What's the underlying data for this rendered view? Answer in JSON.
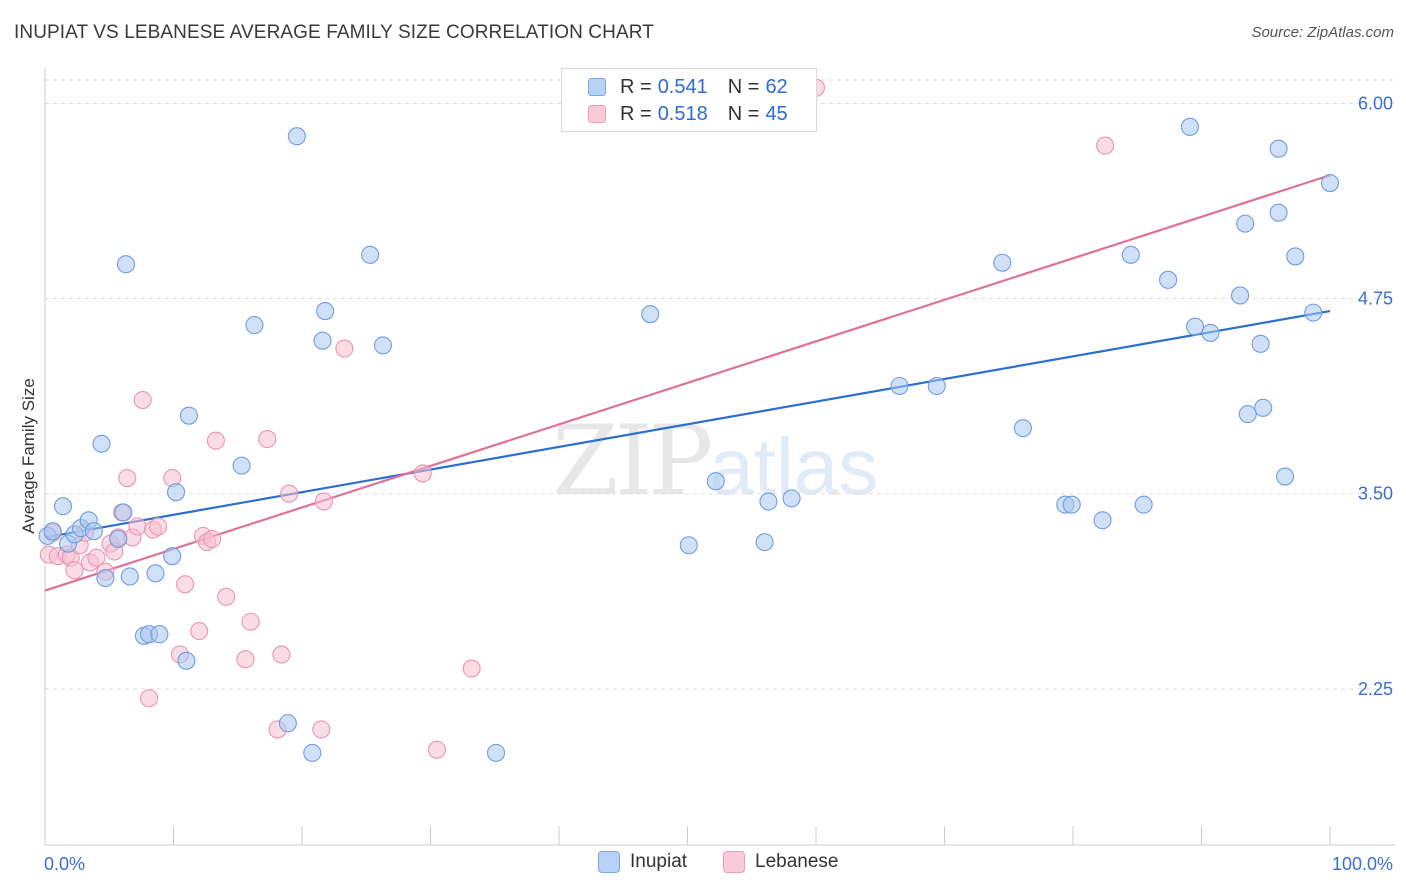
{
  "title": "INUPIAT VS LEBANESE AVERAGE FAMILY SIZE CORRELATION CHART",
  "source": "Source: ZipAtlas.com",
  "watermark": {
    "zip": "ZIP",
    "atlas": "atlas"
  },
  "legend": {
    "rows": [
      {
        "r_label": "R =",
        "r_value": "0.541",
        "n_label": "N =",
        "n_value": "62"
      },
      {
        "r_label": "R =",
        "r_value": "0.518",
        "n_label": "N =",
        "n_value": "45"
      }
    ]
  },
  "bottom_legend": {
    "inupiat": "Inupiat",
    "lebanese": "Lebanese"
  },
  "colors": {
    "inupiat_fill": "#a9c8f0",
    "inupiat_stroke": "#6f9ee0",
    "inupiat_line": "#2b6fd0",
    "lebanese_fill": "#f6bfd0",
    "lebanese_stroke": "#ec94b2",
    "lebanese_line": "#e0709a",
    "tick_text": "#3a6fd0",
    "grid": "#dddddd"
  },
  "chart_data": {
    "type": "scatter",
    "title": "INUPIAT VS LEBANESE AVERAGE FAMILY SIZE CORRELATION CHART",
    "xlabel": "",
    "ylabel": "Average Family Size",
    "xlim": [
      0,
      100
    ],
    "ylim": [
      1.25,
      6.15
    ],
    "x_tick_labels": [
      {
        "value": 0,
        "label": "0.0%"
      },
      {
        "value": 100,
        "label": "100.0%"
      }
    ],
    "x_minor_ticks": [
      10,
      20,
      30,
      40,
      50,
      60,
      70,
      80,
      90,
      100
    ],
    "y_ticks": [
      {
        "value": 2.25,
        "label": "2.25"
      },
      {
        "value": 3.5,
        "label": "3.50"
      },
      {
        "value": 4.75,
        "label": "4.75"
      },
      {
        "value": 6.0,
        "label": "6.00"
      }
    ],
    "grid": true,
    "series": [
      {
        "name": "Inupiat",
        "r": 0.541,
        "n": 62,
        "trend": [
          [
            0,
            3.22
          ],
          [
            100,
            4.67
          ]
        ],
        "points": [
          [
            0.2,
            3.23
          ],
          [
            0.6,
            3.26
          ],
          [
            1.4,
            3.42
          ],
          [
            1.8,
            3.18
          ],
          [
            2.3,
            3.24
          ],
          [
            2.8,
            3.28
          ],
          [
            3.4,
            3.33
          ],
          [
            3.8,
            3.26
          ],
          [
            4.4,
            3.82
          ],
          [
            4.7,
            2.96
          ],
          [
            5.7,
            3.21
          ],
          [
            6.1,
            3.38
          ],
          [
            6.3,
            4.97
          ],
          [
            6.6,
            2.97
          ],
          [
            7.7,
            2.59
          ],
          [
            8.1,
            2.6
          ],
          [
            8.6,
            2.99
          ],
          [
            8.9,
            2.6
          ],
          [
            9.9,
            3.1
          ],
          [
            10.2,
            3.51
          ],
          [
            11.0,
            2.43
          ],
          [
            11.2,
            4.0
          ],
          [
            15.3,
            3.68
          ],
          [
            16.3,
            4.58
          ],
          [
            18.9,
            2.03
          ],
          [
            19.6,
            5.79
          ],
          [
            20.8,
            1.84
          ],
          [
            21.6,
            4.48
          ],
          [
            21.8,
            4.67
          ],
          [
            25.3,
            5.03
          ],
          [
            26.3,
            4.45
          ],
          [
            35.1,
            1.84
          ],
          [
            47.1,
            4.65
          ],
          [
            50.1,
            3.17
          ],
          [
            52.2,
            3.58
          ],
          [
            56.0,
            3.19
          ],
          [
            56.3,
            3.45
          ],
          [
            58.1,
            3.47
          ],
          [
            66.5,
            4.19
          ],
          [
            69.4,
            4.19
          ],
          [
            74.5,
            4.98
          ],
          [
            76.1,
            3.92
          ],
          [
            79.4,
            3.43
          ],
          [
            79.9,
            3.43
          ],
          [
            82.3,
            3.33
          ],
          [
            84.5,
            5.03
          ],
          [
            85.5,
            3.43
          ],
          [
            87.4,
            4.87
          ],
          [
            89.1,
            5.85
          ],
          [
            89.5,
            4.57
          ],
          [
            90.7,
            4.53
          ],
          [
            93.0,
            4.77
          ],
          [
            93.4,
            5.23
          ],
          [
            93.6,
            4.01
          ],
          [
            94.6,
            4.46
          ],
          [
            94.8,
            4.05
          ],
          [
            96.0,
            5.71
          ],
          [
            96.0,
            5.3
          ],
          [
            96.5,
            3.61
          ],
          [
            97.3,
            5.02
          ],
          [
            98.7,
            4.66
          ],
          [
            100.0,
            5.49
          ]
        ]
      },
      {
        "name": "Lebanese",
        "r": 0.518,
        "n": 45,
        "trend": [
          [
            0,
            2.88
          ],
          [
            100,
            5.54
          ]
        ],
        "points": [
          [
            0.3,
            3.11
          ],
          [
            0.6,
            3.25
          ],
          [
            1.0,
            3.1
          ],
          [
            1.7,
            3.11
          ],
          [
            2.0,
            3.09
          ],
          [
            2.3,
            3.01
          ],
          [
            2.7,
            3.17
          ],
          [
            3.1,
            3.25
          ],
          [
            3.5,
            3.06
          ],
          [
            4.0,
            3.09
          ],
          [
            4.7,
            3.0
          ],
          [
            5.1,
            3.18
          ],
          [
            5.4,
            3.13
          ],
          [
            5.7,
            3.22
          ],
          [
            6.0,
            3.38
          ],
          [
            6.4,
            3.6
          ],
          [
            6.8,
            3.22
          ],
          [
            7.2,
            3.29
          ],
          [
            7.6,
            4.1
          ],
          [
            8.1,
            2.19
          ],
          [
            8.4,
            3.27
          ],
          [
            8.8,
            3.29
          ],
          [
            9.9,
            3.6
          ],
          [
            10.5,
            2.47
          ],
          [
            10.9,
            2.92
          ],
          [
            12.0,
            2.62
          ],
          [
            12.3,
            3.23
          ],
          [
            12.6,
            3.19
          ],
          [
            13.0,
            3.21
          ],
          [
            13.3,
            3.84
          ],
          [
            14.1,
            2.84
          ],
          [
            15.6,
            2.44
          ],
          [
            16.0,
            2.68
          ],
          [
            17.3,
            3.85
          ],
          [
            18.1,
            1.99
          ],
          [
            18.4,
            2.47
          ],
          [
            19.0,
            3.5
          ],
          [
            21.5,
            1.99
          ],
          [
            21.7,
            3.45
          ],
          [
            23.3,
            4.43
          ],
          [
            29.4,
            3.63
          ],
          [
            30.5,
            1.86
          ],
          [
            33.2,
            2.38
          ],
          [
            60.0,
            6.1
          ],
          [
            82.5,
            5.73
          ]
        ]
      }
    ]
  }
}
